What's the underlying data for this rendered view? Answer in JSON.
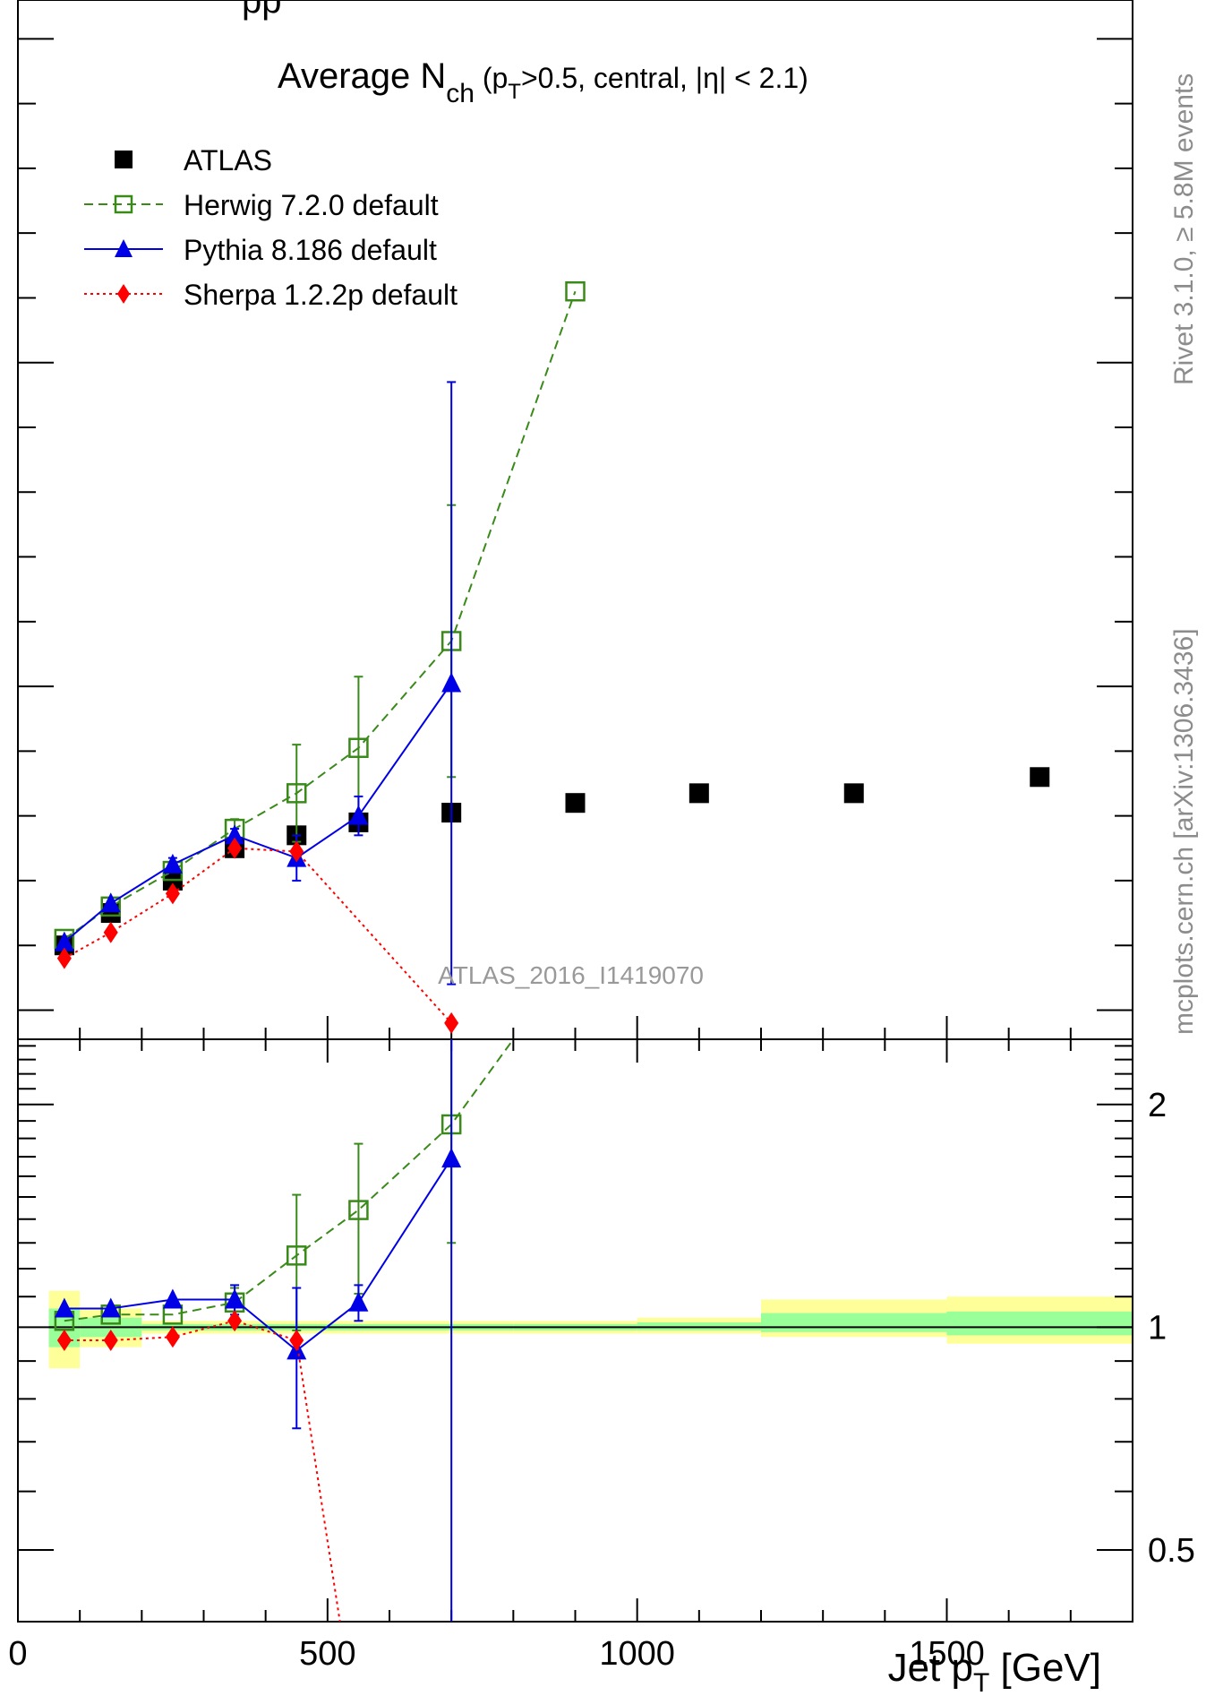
{
  "chart_data": [
    {
      "type": "line",
      "panel": "main",
      "title_main": "Average N",
      "title_sub": "ch",
      "title_rest_a": " (p",
      "title_rest_sub": "T",
      "title_rest_b": ">0.5, central, |η| < 2.1)",
      "analysis_label": "ATLAS_2016_I1419070",
      "xlim": [
        0,
        1800
      ],
      "series": [
        {
          "name": "ATLAS",
          "style": "data",
          "color": "#000000",
          "marker": "filled-square",
          "x": [
            75,
            150,
            250,
            350,
            450,
            550,
            700,
            900,
            1100,
            1350,
            1650
          ],
          "y": [
            6.0,
            6.5,
            7.0,
            7.5,
            7.7,
            7.9,
            8.05,
            8.2,
            8.35,
            8.35,
            8.6
          ]
        },
        {
          "name": "Herwig 7.2.0 default",
          "style": "dashed",
          "color": "#3a8a1a",
          "marker": "open-square",
          "x": [
            75,
            150,
            250,
            350,
            450,
            550,
            700,
            900
          ],
          "y": [
            6.1,
            6.6,
            7.15,
            7.8,
            8.35,
            9.05,
            10.7,
            16.1
          ],
          "err": [
            0,
            0,
            0,
            0.15,
            0.75,
            1.1,
            2.1,
            0
          ]
        },
        {
          "name": "Pythia 8.186 default",
          "style": "solid",
          "color": "#0000e6",
          "marker": "filled-triangle",
          "x": [
            75,
            150,
            250,
            350,
            450,
            550,
            700
          ],
          "y": [
            6.05,
            6.65,
            7.25,
            7.7,
            7.35,
            8.0,
            10.05
          ],
          "err": [
            0,
            0,
            0.1,
            0.1,
            0.35,
            0.3,
            4.65
          ]
        },
        {
          "name": "Sherpa 1.2.2p default",
          "style": "dotted",
          "color": "#ff0000",
          "marker": "filled-diamond",
          "x": [
            75,
            150,
            250,
            350,
            450,
            700
          ],
          "y": [
            5.8,
            6.2,
            6.8,
            7.5,
            7.45,
            4.8
          ]
        }
      ]
    },
    {
      "type": "line",
      "panel": "ratio",
      "xlabel_a": "Jet p",
      "xlabel_sub": "T",
      "xlabel_b": " [GeV]",
      "xlim": [
        0,
        1800
      ],
      "ylim": [
        0.4,
        2.45
      ],
      "x_ticks": [
        "0",
        "500",
        "1000",
        "1500"
      ],
      "x_tick_values": [
        0,
        500,
        1000,
        1500
      ],
      "y_ticks": [
        "0.5",
        "1",
        "2"
      ],
      "y_tick_values": [
        0.5,
        1,
        2
      ],
      "bands": {
        "outer_color": "#ffff99",
        "inner_color": "#99ff99",
        "bins": [
          {
            "x0": 50,
            "x1": 100,
            "outer": [
              0.88,
              1.12
            ],
            "inner": [
              0.94,
              1.06
            ]
          },
          {
            "x0": 100,
            "x1": 200,
            "outer": [
              0.94,
              1.06
            ],
            "inner": [
              0.97,
              1.03
            ]
          },
          {
            "x0": 200,
            "x1": 300,
            "outer": [
              0.98,
              1.02
            ],
            "inner": [
              0.99,
              1.01
            ]
          },
          {
            "x0": 300,
            "x1": 400,
            "outer": [
              0.98,
              1.02
            ],
            "inner": [
              0.99,
              1.01
            ]
          },
          {
            "x0": 400,
            "x1": 500,
            "outer": [
              0.98,
              1.02
            ],
            "inner": [
              0.99,
              1.01
            ]
          },
          {
            "x0": 500,
            "x1": 600,
            "outer": [
              0.98,
              1.02
            ],
            "inner": [
              0.99,
              1.01
            ]
          },
          {
            "x0": 600,
            "x1": 800,
            "outer": [
              0.98,
              1.02
            ],
            "inner": [
              0.99,
              1.01
            ]
          },
          {
            "x0": 800,
            "x1": 1000,
            "outer": [
              0.98,
              1.02
            ],
            "inner": [
              0.99,
              1.01
            ]
          },
          {
            "x0": 1000,
            "x1": 1200,
            "outer": [
              0.98,
              1.03
            ],
            "inner": [
              0.99,
              1.015
            ]
          },
          {
            "x0": 1200,
            "x1": 1500,
            "outer": [
              0.97,
              1.09
            ],
            "inner": [
              0.985,
              1.045
            ]
          },
          {
            "x0": 1500,
            "x1": 1800,
            "outer": [
              0.95,
              1.1
            ],
            "inner": [
              0.975,
              1.05
            ]
          }
        ]
      },
      "series": [
        {
          "name": "Herwig 7.2.0 default",
          "x": [
            75,
            150,
            250,
            350,
            450,
            550,
            700,
            800
          ],
          "y": [
            1.02,
            1.04,
            1.04,
            1.08,
            1.25,
            1.44,
            1.88,
            2.45
          ],
          "err": [
            0,
            0,
            0,
            0.05,
            0.26,
            0.33,
            0.58,
            0
          ]
        },
        {
          "name": "Pythia 8.186 default",
          "x": [
            75,
            150,
            250,
            350,
            450,
            550,
            700
          ],
          "y": [
            1.06,
            1.06,
            1.09,
            1.09,
            0.93,
            1.08,
            1.69
          ],
          "err": [
            0,
            0,
            0,
            0.05,
            0.2,
            0.06,
            1.3
          ]
        },
        {
          "name": "Sherpa 1.2.2p default",
          "x": [
            75,
            150,
            250,
            350,
            450,
            520
          ],
          "y": [
            0.96,
            0.96,
            0.97,
            1.02,
            0.96,
            0.4
          ]
        }
      ]
    }
  ],
  "side_labels": {
    "rivet": "Rivet 3.1.0, ≥ 5.8M events",
    "mcplots": "mcplots.cern.ch [arXiv:1306.3436]"
  },
  "top_clip_text": "pp"
}
